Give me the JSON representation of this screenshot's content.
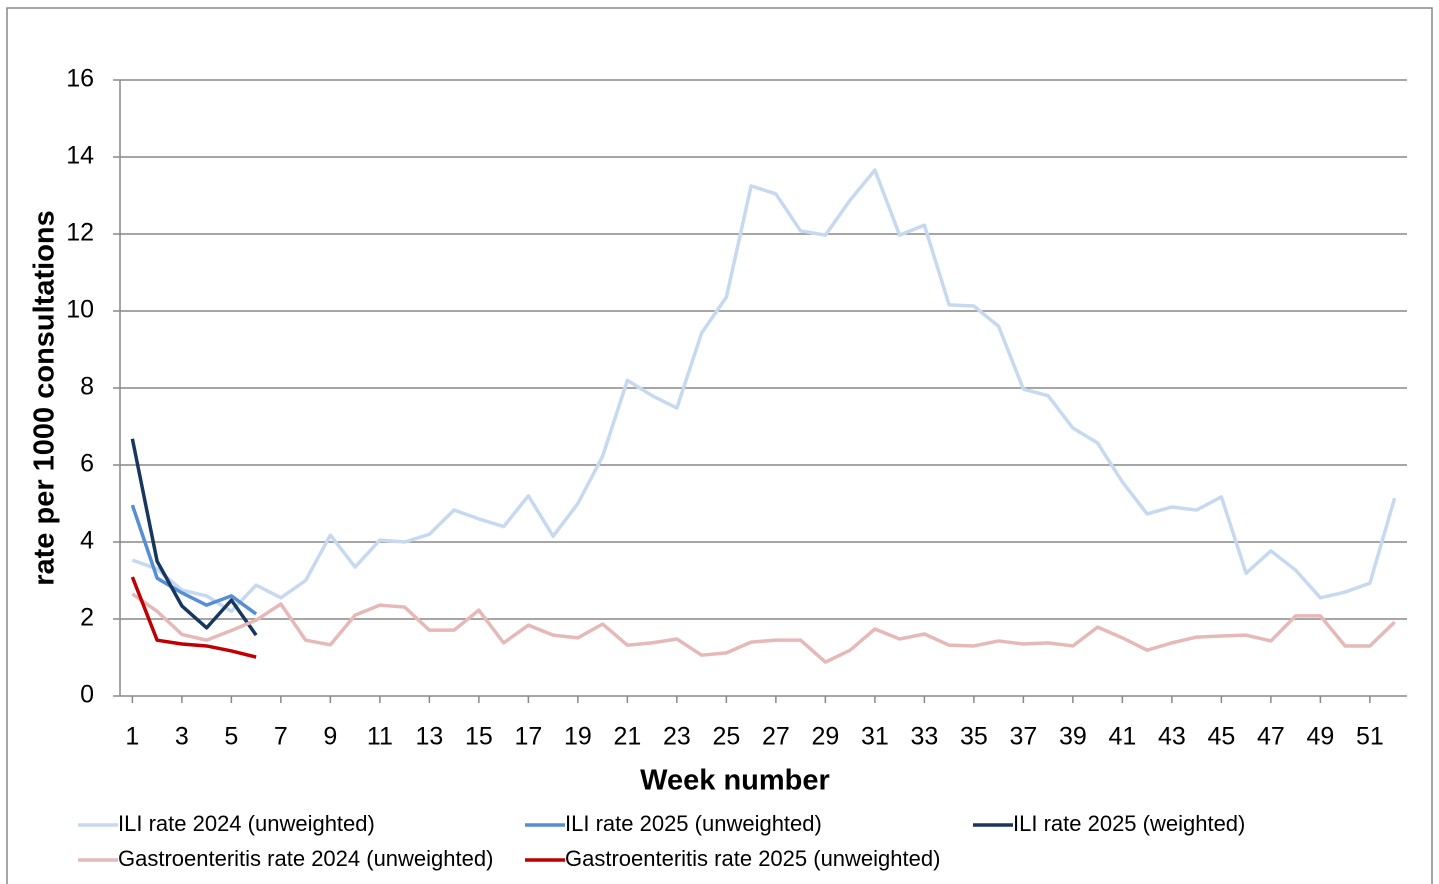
{
  "chart_data": {
    "type": "line",
    "x": [
      1,
      2,
      3,
      4,
      5,
      6,
      7,
      8,
      9,
      10,
      11,
      12,
      13,
      14,
      15,
      16,
      17,
      18,
      19,
      20,
      21,
      22,
      23,
      24,
      25,
      26,
      27,
      28,
      29,
      30,
      31,
      32,
      33,
      34,
      35,
      36,
      37,
      38,
      39,
      40,
      41,
      42,
      43,
      44,
      45,
      46,
      47,
      48,
      49,
      50,
      51,
      52
    ],
    "xlim": [
      0.5,
      52.5
    ],
    "xticks": [
      1,
      3,
      5,
      7,
      9,
      11,
      13,
      15,
      17,
      19,
      21,
      23,
      25,
      27,
      29,
      31,
      33,
      35,
      37,
      39,
      41,
      43,
      45,
      47,
      49,
      51
    ],
    "ylim": [
      0,
      16
    ],
    "yticks": [
      0,
      2,
      4,
      6,
      8,
      10,
      12,
      14,
      16
    ],
    "grid": true,
    "x_label": "Week number",
    "y_label": "rate per 1000 consultations",
    "legend": "bottom",
    "series": [
      {
        "name": "ILI rate 2024 (unweighted)",
        "color": "#c6d9f0",
        "values": [
          3.53,
          3.3,
          2.75,
          2.6,
          2.2,
          2.88,
          2.55,
          3.0,
          4.18,
          3.35,
          4.05,
          4.0,
          4.2,
          4.83,
          4.6,
          4.4,
          5.2,
          4.15,
          5.0,
          6.23,
          8.2,
          7.8,
          7.48,
          9.43,
          10.36,
          13.25,
          13.04,
          12.08,
          11.97,
          12.88,
          13.66,
          11.97,
          12.23,
          10.16,
          10.13,
          9.6,
          7.97,
          7.8,
          6.96,
          6.57,
          5.56,
          4.73,
          4.91,
          4.83,
          5.17,
          3.19,
          3.77,
          3.27,
          2.55,
          2.7,
          2.93,
          5.14
        ]
      },
      {
        "name": "ILI rate 2025 (unweighted)",
        "color": "#558ed5",
        "values": [
          4.96,
          3.06,
          2.68,
          2.36,
          2.6,
          2.13,
          null,
          null,
          null,
          null,
          null,
          null,
          null,
          null,
          null,
          null,
          null,
          null,
          null,
          null,
          null,
          null,
          null,
          null,
          null,
          null,
          null,
          null,
          null,
          null,
          null,
          null,
          null,
          null,
          null,
          null,
          null,
          null,
          null,
          null,
          null,
          null,
          null,
          null,
          null,
          null,
          null,
          null,
          null,
          null,
          null,
          null
        ]
      },
      {
        "name": "ILI rate 2025 (weighted)",
        "color": "#17375e",
        "values": [
          6.68,
          3.5,
          2.34,
          1.77,
          2.49,
          1.58,
          null,
          null,
          null,
          null,
          null,
          null,
          null,
          null,
          null,
          null,
          null,
          null,
          null,
          null,
          null,
          null,
          null,
          null,
          null,
          null,
          null,
          null,
          null,
          null,
          null,
          null,
          null,
          null,
          null,
          null,
          null,
          null,
          null,
          null,
          null,
          null,
          null,
          null,
          null,
          null,
          null,
          null,
          null,
          null,
          null,
          null
        ]
      },
      {
        "name": "Gastroenteritis rate 2024 (unweighted)",
        "color": "#e6b9b8",
        "values": [
          2.65,
          2.2,
          1.6,
          1.45,
          1.7,
          1.97,
          2.39,
          1.45,
          1.33,
          2.1,
          2.36,
          2.31,
          1.71,
          1.71,
          2.23,
          1.38,
          1.84,
          1.58,
          1.51,
          1.87,
          1.32,
          1.38,
          1.48,
          1.06,
          1.12,
          1.4,
          1.45,
          1.45,
          0.88,
          1.19,
          1.74,
          1.48,
          1.61,
          1.32,
          1.3,
          1.43,
          1.35,
          1.38,
          1.3,
          1.79,
          1.51,
          1.19,
          1.38,
          1.53,
          1.56,
          1.58,
          1.43,
          2.08,
          2.08,
          1.3,
          1.3,
          1.92
        ]
      },
      {
        "name": "Gastroenteritis rate 2025 (unweighted)",
        "color": "#c00000",
        "values": [
          3.09,
          1.45,
          1.35,
          1.3,
          1.17,
          1.01,
          null,
          null,
          null,
          null,
          null,
          null,
          null,
          null,
          null,
          null,
          null,
          null,
          null,
          null,
          null,
          null,
          null,
          null,
          null,
          null,
          null,
          null,
          null,
          null,
          null,
          null,
          null,
          null,
          null,
          null,
          null,
          null,
          null,
          null,
          null,
          null,
          null,
          null,
          null,
          null,
          null,
          null,
          null,
          null,
          null,
          null
        ]
      }
    ]
  }
}
